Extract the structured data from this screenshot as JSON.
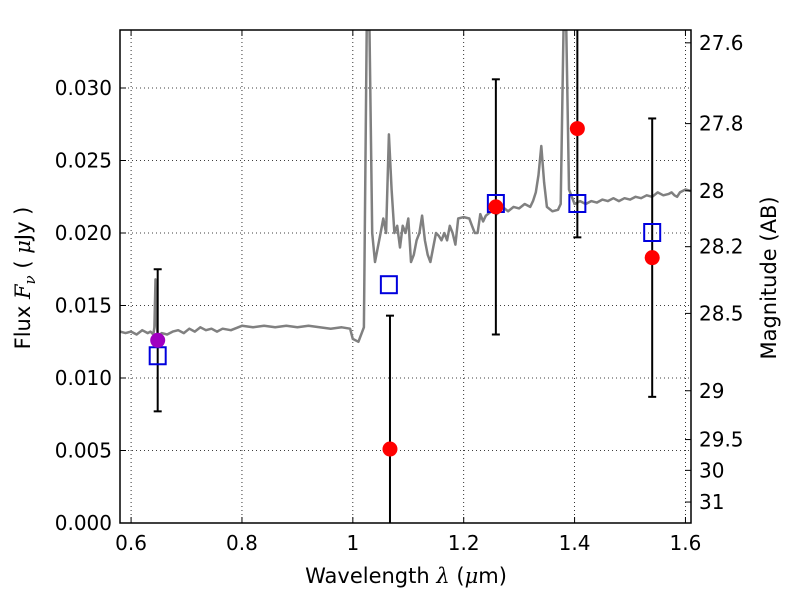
{
  "chart_data": {
    "type": "scatter",
    "xlabel": {
      "prefix": "Wavelength",
      "symbol": "λ",
      "unit_open": "(",
      "unit_mu": "μ",
      "unit_rest": "m)"
    },
    "ylabel": {
      "prefix": "Flux",
      "symbol_main": "F",
      "symbol_sub": "ν",
      "unit_open": "(",
      "unit_mu": "μ",
      "unit_rest": "Jy )"
    },
    "ylabel_right": "Magnitude (AB)",
    "xlim": [
      0.58,
      1.61
    ],
    "ylim": [
      0.0,
      0.034
    ],
    "grid": true,
    "xticks": [
      {
        "value": 0.6,
        "label": "0.6"
      },
      {
        "value": 0.8,
        "label": "0.8"
      },
      {
        "value": 1.0,
        "label": "1"
      },
      {
        "value": 1.2,
        "label": "1.2"
      },
      {
        "value": 1.4,
        "label": "1.4"
      },
      {
        "value": 1.6,
        "label": "1.6"
      }
    ],
    "yticks": [
      {
        "value": 0.0,
        "label": "0.000"
      },
      {
        "value": 0.005,
        "label": "0.005"
      },
      {
        "value": 0.01,
        "label": "0.010"
      },
      {
        "value": 0.015,
        "label": "0.015"
      },
      {
        "value": 0.02,
        "label": "0.020"
      },
      {
        "value": 0.025,
        "label": "0.025"
      },
      {
        "value": 0.03,
        "label": "0.030"
      }
    ],
    "right_ticks": [
      {
        "mag": 27.6,
        "label": "27.6"
      },
      {
        "mag": 27.8,
        "label": "27.8"
      },
      {
        "mag": 28.0,
        "label": "28"
      },
      {
        "mag": 28.2,
        "label": "28.2"
      },
      {
        "mag": 28.5,
        "label": "28.5"
      },
      {
        "mag": 29.0,
        "label": "29"
      },
      {
        "mag": 29.5,
        "label": "29.5"
      },
      {
        "mag": 30.0,
        "label": "30"
      },
      {
        "mag": 31.0,
        "label": "31"
      }
    ],
    "series": [
      {
        "kind": "model_spectrum",
        "color": "#808080",
        "points": [
          [
            0.58,
            0.0132
          ],
          [
            0.59,
            0.0131
          ],
          [
            0.6,
            0.0132
          ],
          [
            0.61,
            0.013
          ],
          [
            0.62,
            0.0133
          ],
          [
            0.63,
            0.0131
          ],
          [
            0.635,
            0.0132
          ],
          [
            0.64,
            0.013
          ],
          [
            0.642,
            0.0135
          ],
          [
            0.644,
            0.0168
          ],
          [
            0.646,
            0.014
          ],
          [
            0.648,
            0.0128
          ],
          [
            0.655,
            0.0131
          ],
          [
            0.665,
            0.013
          ],
          [
            0.675,
            0.0132
          ],
          [
            0.685,
            0.0133
          ],
          [
            0.695,
            0.0131
          ],
          [
            0.705,
            0.0134
          ],
          [
            0.715,
            0.0132
          ],
          [
            0.725,
            0.0135
          ],
          [
            0.735,
            0.0133
          ],
          [
            0.745,
            0.0134
          ],
          [
            0.755,
            0.0132
          ],
          [
            0.765,
            0.0134
          ],
          [
            0.78,
            0.0133
          ],
          [
            0.8,
            0.0136
          ],
          [
            0.82,
            0.0135
          ],
          [
            0.84,
            0.0136
          ],
          [
            0.86,
            0.0135
          ],
          [
            0.88,
            0.0136
          ],
          [
            0.9,
            0.0135
          ],
          [
            0.92,
            0.0136
          ],
          [
            0.94,
            0.0135
          ],
          [
            0.96,
            0.0134
          ],
          [
            0.98,
            0.0135
          ],
          [
            0.995,
            0.0134
          ],
          [
            1.0,
            0.0127
          ],
          [
            1.01,
            0.0125
          ],
          [
            1.02,
            0.0135
          ],
          [
            1.025,
            0.034
          ],
          [
            1.03,
            0.034
          ],
          [
            1.035,
            0.02
          ],
          [
            1.04,
            0.018
          ],
          [
            1.045,
            0.019
          ],
          [
            1.05,
            0.02
          ],
          [
            1.055,
            0.021
          ],
          [
            1.06,
            0.02
          ],
          [
            1.065,
            0.0268
          ],
          [
            1.07,
            0.023
          ],
          [
            1.075,
            0.02
          ],
          [
            1.08,
            0.0205
          ],
          [
            1.085,
            0.019
          ],
          [
            1.09,
            0.0205
          ],
          [
            1.095,
            0.02
          ],
          [
            1.1,
            0.021
          ],
          [
            1.105,
            0.018
          ],
          [
            1.11,
            0.0185
          ],
          [
            1.115,
            0.0195
          ],
          [
            1.12,
            0.02
          ],
          [
            1.125,
            0.0212
          ],
          [
            1.13,
            0.0195
          ],
          [
            1.135,
            0.0185
          ],
          [
            1.14,
            0.018
          ],
          [
            1.145,
            0.019
          ],
          [
            1.15,
            0.02
          ],
          [
            1.155,
            0.0198
          ],
          [
            1.16,
            0.0195
          ],
          [
            1.165,
            0.02
          ],
          [
            1.17,
            0.0195
          ],
          [
            1.175,
            0.0205
          ],
          [
            1.18,
            0.02
          ],
          [
            1.185,
            0.0192
          ],
          [
            1.19,
            0.021
          ],
          [
            1.2,
            0.0211
          ],
          [
            1.21,
            0.021
          ],
          [
            1.215,
            0.0205
          ],
          [
            1.22,
            0.02
          ],
          [
            1.225,
            0.02
          ],
          [
            1.23,
            0.0213
          ],
          [
            1.235,
            0.0208
          ],
          [
            1.24,
            0.0212
          ],
          [
            1.25,
            0.0215
          ],
          [
            1.26,
            0.0213
          ],
          [
            1.27,
            0.0218
          ],
          [
            1.28,
            0.0215
          ],
          [
            1.29,
            0.0218
          ],
          [
            1.3,
            0.0217
          ],
          [
            1.31,
            0.022
          ],
          [
            1.32,
            0.0218
          ],
          [
            1.325,
            0.0222
          ],
          [
            1.33,
            0.0228
          ],
          [
            1.335,
            0.024
          ],
          [
            1.34,
            0.026
          ],
          [
            1.345,
            0.0235
          ],
          [
            1.35,
            0.0218
          ],
          [
            1.36,
            0.0215
          ],
          [
            1.37,
            0.0216
          ],
          [
            1.375,
            0.022
          ],
          [
            1.38,
            0.034
          ],
          [
            1.385,
            0.034
          ],
          [
            1.39,
            0.023
          ],
          [
            1.4,
            0.022
          ],
          [
            1.41,
            0.0222
          ],
          [
            1.42,
            0.022
          ],
          [
            1.43,
            0.0222
          ],
          [
            1.44,
            0.0221
          ],
          [
            1.45,
            0.0223
          ],
          [
            1.46,
            0.0222
          ],
          [
            1.47,
            0.0224
          ],
          [
            1.48,
            0.0222
          ],
          [
            1.49,
            0.0224
          ],
          [
            1.5,
            0.0223
          ],
          [
            1.51,
            0.0225
          ],
          [
            1.52,
            0.0224
          ],
          [
            1.53,
            0.0226
          ],
          [
            1.54,
            0.0225
          ],
          [
            1.55,
            0.0228
          ],
          [
            1.56,
            0.0226
          ],
          [
            1.57,
            0.0227
          ],
          [
            1.575,
            0.0228
          ],
          [
            1.58,
            0.0226
          ],
          [
            1.585,
            0.0225
          ],
          [
            1.59,
            0.0228
          ],
          [
            1.6,
            0.023
          ],
          [
            1.61,
            0.0229
          ]
        ]
      },
      {
        "kind": "model_photometry",
        "marker": "open-square",
        "color": "#0000dd",
        "points": [
          {
            "x": 0.648,
            "y": 0.0115
          },
          {
            "x": 1.065,
            "y": 0.0164
          },
          {
            "x": 1.258,
            "y": 0.022
          },
          {
            "x": 1.405,
            "y": 0.022
          },
          {
            "x": 1.54,
            "y": 0.02
          }
        ]
      },
      {
        "kind": "observed",
        "marker": "filled-circle",
        "points": [
          {
            "x": 0.648,
            "y": 0.0126,
            "err": 0.0049,
            "color": "#a000c0"
          },
          {
            "x": 1.067,
            "y": 0.0051,
            "err": 0.0092,
            "color": "#ff0000"
          },
          {
            "x": 1.258,
            "y": 0.0218,
            "err": 0.0088,
            "color": "#ff0000"
          },
          {
            "x": 1.405,
            "y": 0.0272,
            "err": 0.0075,
            "color": "#ff0000"
          },
          {
            "x": 1.54,
            "y": 0.0183,
            "err": 0.0096,
            "color": "#ff0000"
          }
        ]
      }
    ]
  }
}
